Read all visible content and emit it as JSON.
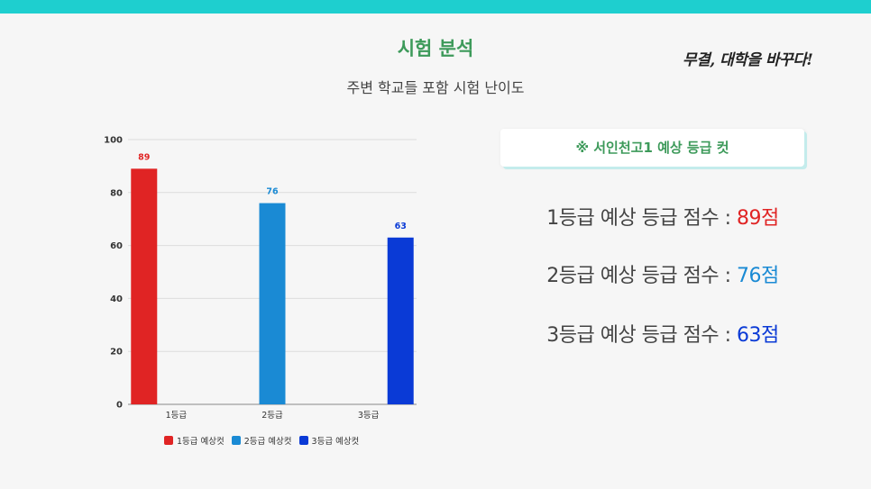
{
  "header": {
    "title": "시험 분석",
    "subtitle": "주변 학교들 포함 시험 난이도",
    "slogan": "무결, 대학을 바꾸다!"
  },
  "colors": {
    "accent": "#1ecfcf",
    "title_green": "#3d9a5a",
    "grade1": "#e02424",
    "grade2": "#1a8ad4",
    "grade3": "#0a3ad6"
  },
  "chart_data": {
    "type": "bar",
    "categories": [
      "1등급",
      "2등급",
      "3등급"
    ],
    "series": [
      {
        "name": "1등급 예상컷",
        "color": "#e02424",
        "values": [
          89,
          null,
          null
        ]
      },
      {
        "name": "2등급 예상컷",
        "color": "#1a8ad4",
        "values": [
          null,
          76,
          null
        ]
      },
      {
        "name": "3등급 예상컷",
        "color": "#0a3ad6",
        "values": [
          null,
          null,
          63
        ]
      }
    ],
    "ylim": [
      0,
      100
    ],
    "yticks": [
      0,
      20,
      40,
      60,
      80,
      100
    ],
    "grid": true,
    "legend": "bottom"
  },
  "info": {
    "box_title": "※ 서인천고1 예상 등급 컷"
  },
  "scores": [
    {
      "label": "1등급 예상 등급 점수 : ",
      "value": "89점",
      "color": "#e02424"
    },
    {
      "label": "2등급 예상 등급 점수 : ",
      "value": "76점",
      "color": "#1a8ad4"
    },
    {
      "label": "3등급 예상 등급 점수 : ",
      "value": "63점",
      "color": "#0a3ad6"
    }
  ]
}
